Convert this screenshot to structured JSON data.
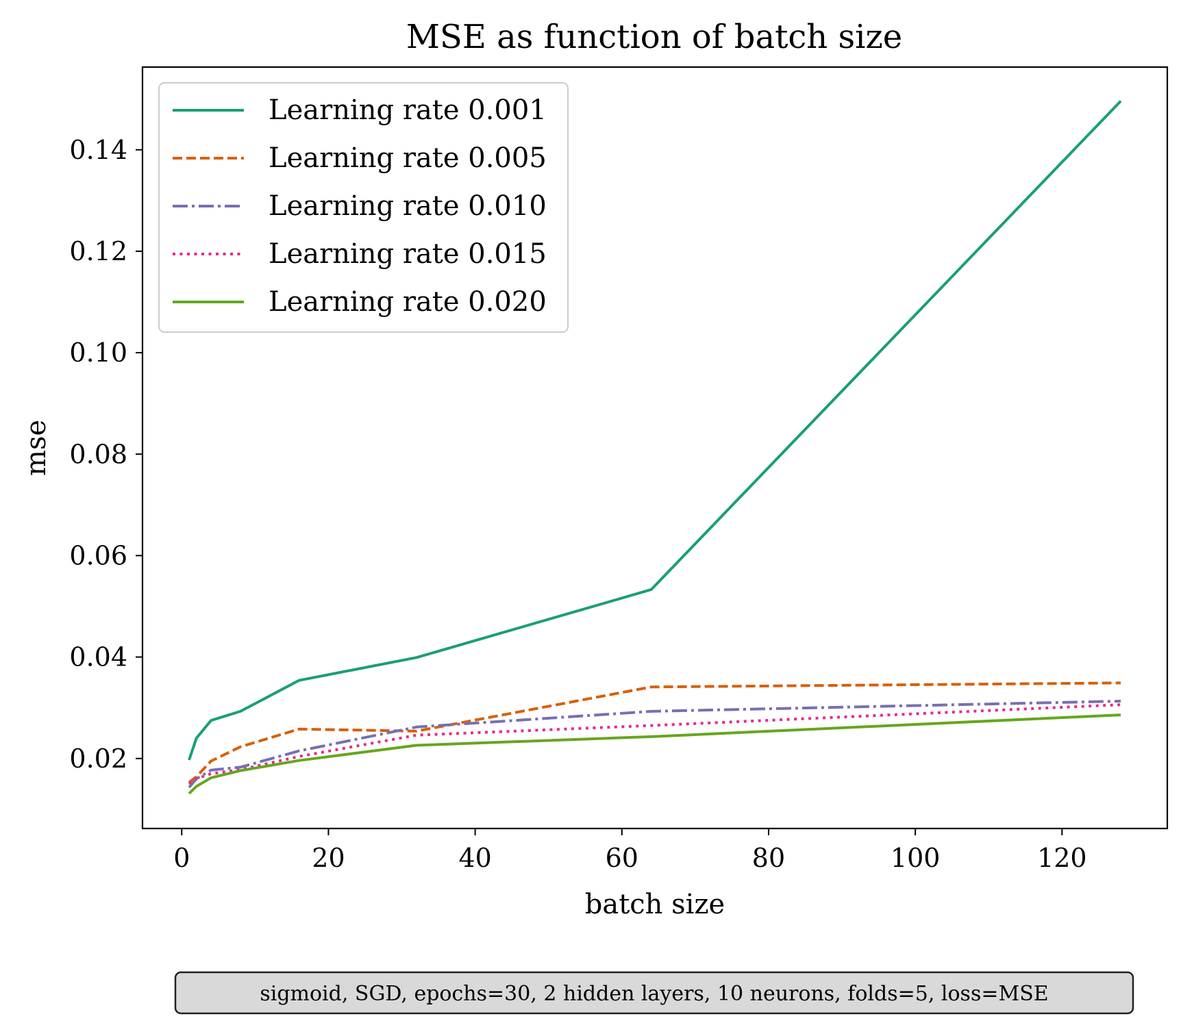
{
  "chart_data": {
    "type": "line",
    "title": "MSE as function of batch size",
    "xlabel": "batch size",
    "ylabel": "mse",
    "xlim": [
      -5.35,
      134.35
    ],
    "ylim": [
      0.0062,
      0.1563
    ],
    "x_ticks": [
      0,
      20,
      40,
      60,
      80,
      100,
      120
    ],
    "x_tick_labels": [
      "0",
      "20",
      "40",
      "60",
      "80",
      "100",
      "120"
    ],
    "y_ticks": [
      0.02,
      0.04,
      0.06,
      0.08,
      0.1,
      0.12,
      0.14
    ],
    "y_tick_labels": [
      "0.02",
      "0.04",
      "0.06",
      "0.08",
      "0.10",
      "0.12",
      "0.14"
    ],
    "grid": false,
    "legend_position": "top-left",
    "x": [
      1,
      2,
      4,
      8,
      16,
      32,
      64,
      128
    ],
    "series": [
      {
        "name": "Learning rate 0.001",
        "color": "#1b9e77",
        "dash": "solid",
        "values": [
          0.0197,
          0.024,
          0.0275,
          0.0293,
          0.0354,
          0.0399,
          0.0533,
          0.1496
        ]
      },
      {
        "name": "Learning rate 0.005",
        "color": "#d95f02",
        "dash": "dashed",
        "values": [
          0.0153,
          0.0164,
          0.0195,
          0.0223,
          0.0258,
          0.0254,
          0.0341,
          0.0349
        ]
      },
      {
        "name": "Learning rate 0.010",
        "color": "#7570b3",
        "dash": "dashdot",
        "values": [
          0.0143,
          0.016,
          0.0177,
          0.0183,
          0.0215,
          0.0262,
          0.0293,
          0.0313
        ]
      },
      {
        "name": "Learning rate 0.015",
        "color": "#e7298a",
        "dash": "dotted",
        "values": [
          0.015,
          0.016,
          0.017,
          0.0178,
          0.0204,
          0.0246,
          0.0265,
          0.0306
        ]
      },
      {
        "name": "Learning rate 0.020",
        "color": "#66a61e",
        "dash": "solid",
        "values": [
          0.0131,
          0.0145,
          0.0162,
          0.0176,
          0.0196,
          0.0226,
          0.0243,
          0.0286
        ]
      }
    ],
    "annotation": "sigmoid, SGD, epochs=30, 2 hidden layers, 10 neurons, folds=5, loss=MSE"
  }
}
